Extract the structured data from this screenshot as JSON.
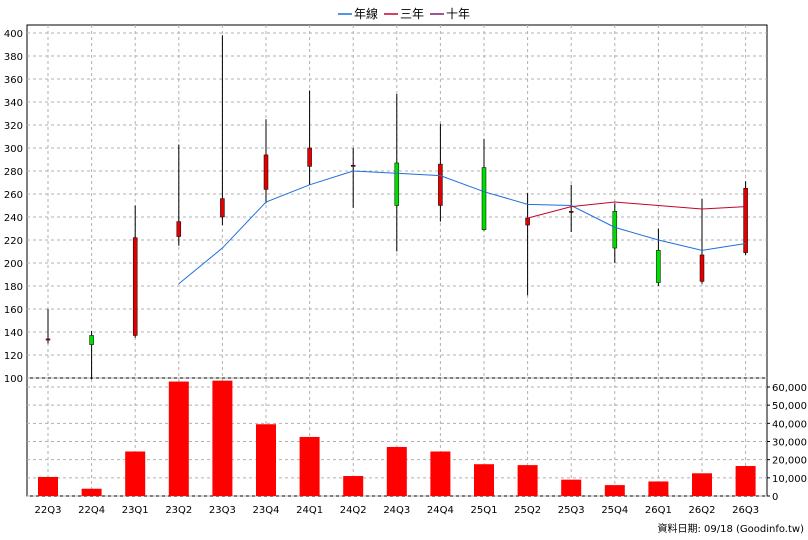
{
  "chart_data": {
    "type": "candlestick-with-volume",
    "legend": [
      {
        "name": "年線",
        "color": "#1f6fdc"
      },
      {
        "name": "三年",
        "color": "#c8002c"
      },
      {
        "name": "十年",
        "color": "#7a1f6a"
      }
    ],
    "categories": [
      "22Q3",
      "22Q4",
      "23Q1",
      "23Q2",
      "23Q3",
      "23Q4",
      "24Q1",
      "24Q2",
      "24Q3",
      "24Q4",
      "25Q1",
      "25Q2",
      "25Q3",
      "25Q4",
      "26Q1",
      "26Q2",
      "26Q3"
    ],
    "price_axis": {
      "ylim": [
        100,
        400
      ],
      "ticks": [
        100,
        120,
        140,
        160,
        180,
        200,
        220,
        240,
        260,
        280,
        300,
        320,
        340,
        360,
        380,
        400
      ]
    },
    "volume_axis": {
      "ylim": [
        0,
        60000
      ],
      "ticks": [
        "0",
        "10,000",
        "20,000",
        "30,000",
        "40,000",
        "50,000",
        "60,000"
      ]
    },
    "candles": [
      {
        "open": 133,
        "close": 134,
        "high": 160,
        "low": 130
      },
      {
        "open": 137,
        "close": 129,
        "high": 141,
        "low": 99
      },
      {
        "open": 137,
        "close": 222,
        "high": 250,
        "low": 135
      },
      {
        "open": 223,
        "close": 236,
        "high": 303,
        "low": 215
      },
      {
        "open": 240,
        "close": 256,
        "high": 398,
        "low": 233
      },
      {
        "open": 264,
        "close": 294,
        "high": 325,
        "low": 252
      },
      {
        "open": 284,
        "close": 300,
        "high": 350,
        "low": 268
      },
      {
        "open": 284,
        "close": 285,
        "high": 300,
        "low": 248
      },
      {
        "open": 287,
        "close": 250,
        "high": 347,
        "low": 210
      },
      {
        "open": 250,
        "close": 286,
        "high": 321,
        "low": 236
      },
      {
        "open": 283,
        "close": 229,
        "high": 308,
        "low": 228
      },
      {
        "open": 233,
        "close": 239,
        "high": 261,
        "low": 172
      },
      {
        "open": 244,
        "close": 245,
        "high": 268,
        "low": 227
      },
      {
        "open": 245,
        "close": 213,
        "high": 252,
        "low": 200
      },
      {
        "open": 211,
        "close": 183,
        "high": 230,
        "low": 180
      },
      {
        "open": 184,
        "close": 207,
        "high": 256,
        "low": 182
      },
      {
        "open": 209,
        "close": 265,
        "high": 271,
        "low": 207
      }
    ],
    "line_yearly": [
      null,
      null,
      null,
      182,
      213,
      253,
      268,
      280,
      278,
      276,
      262,
      251,
      250,
      231,
      220,
      211,
      217
    ],
    "line_three_year": [
      null,
      null,
      null,
      null,
      null,
      null,
      null,
      null,
      null,
      null,
      null,
      239,
      249,
      253,
      250,
      247,
      249
    ],
    "volume": [
      10500,
      4000,
      24500,
      63000,
      63500,
      39500,
      32500,
      11000,
      27000,
      24500,
      17500,
      17000,
      9000,
      6000,
      8000,
      12500,
      16500
    ],
    "source_text": "資料日期: 09/18  (Goodinfo.tw)",
    "grid": true
  }
}
